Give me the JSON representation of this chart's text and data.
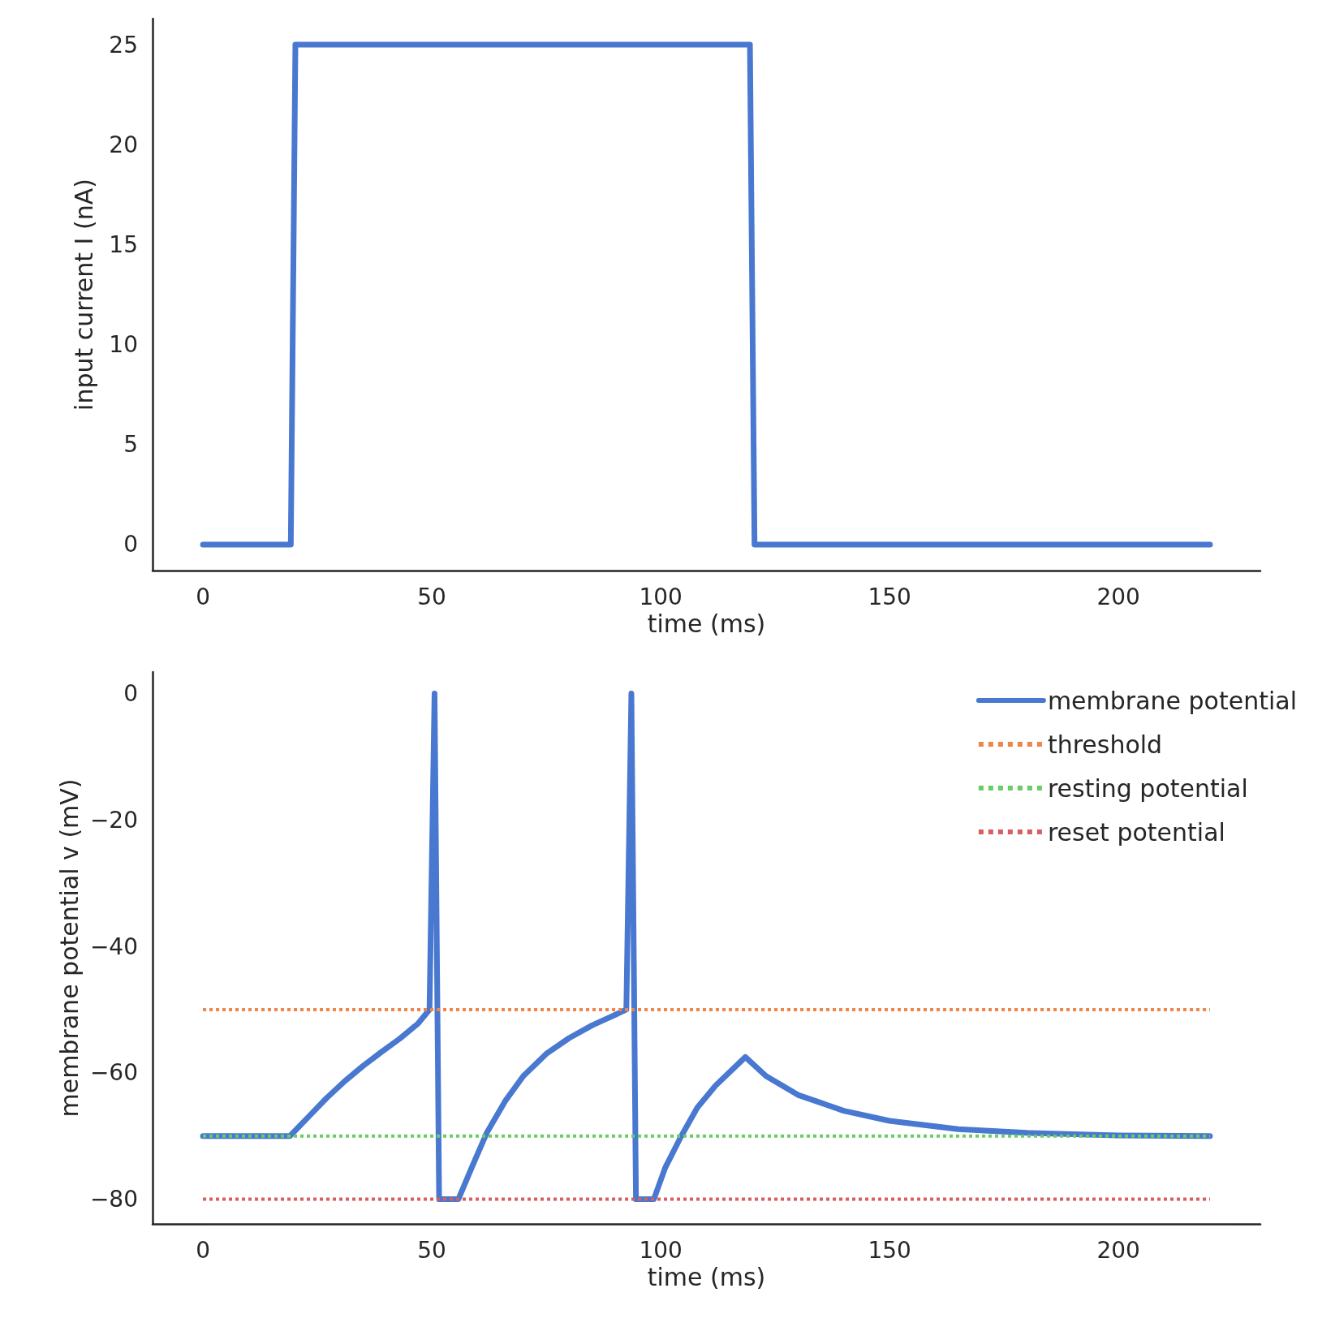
{
  "chart_data": [
    {
      "type": "line",
      "xlabel": "time (ms)",
      "ylabel": "input current I (nA)",
      "xlim": [
        -11,
        231
      ],
      "ylim": [
        -1.3,
        26.3
      ],
      "xticks": [
        0,
        50,
        100,
        150,
        200
      ],
      "yticks": [
        0,
        5,
        10,
        15,
        20,
        25
      ],
      "grid": false,
      "legend": false,
      "marker": "none",
      "series": [
        {
          "color": "#4878d0",
          "x": [
            0,
            19.2,
            20.2,
            119.5,
            120.5,
            220
          ],
          "values": [
            0,
            0,
            25,
            25,
            0,
            0
          ]
        }
      ]
    },
    {
      "type": "line",
      "xlabel": "time (ms)",
      "ylabel": "membrane potential v (mV)",
      "xlim": [
        -11,
        231
      ],
      "ylim": [
        -83.9,
        3.4
      ],
      "xticks": [
        0,
        50,
        100,
        150,
        200
      ],
      "yticks": [
        {
          "value": -80,
          "label": "−80"
        },
        {
          "value": -60,
          "label": "−60"
        },
        {
          "value": -40,
          "label": "−40"
        },
        {
          "value": -20,
          "label": "−20"
        },
        0
      ],
      "grid": false,
      "legend": "top right",
      "marker": "none",
      "series": [
        {
          "name": "membrane potential",
          "color": "#4878d0",
          "line_style": "solid",
          "x": [
            0,
            19,
            23,
            27,
            31,
            35,
            39,
            43,
            47,
            49.5,
            50.6,
            51.6,
            55.8,
            59,
            62,
            66,
            70,
            75,
            80,
            85,
            92.5,
            93.6,
            94.6,
            98.5,
            101,
            104.5,
            108,
            112,
            118.5,
            123,
            130,
            140,
            150,
            165,
            180,
            200,
            220
          ],
          "values": [
            -70,
            -70,
            -67,
            -64,
            -61.3,
            -58.9,
            -56.7,
            -54.6,
            -52.2,
            -50,
            0,
            -80,
            -80,
            -74.5,
            -69.5,
            -64.5,
            -60.5,
            -57,
            -54.5,
            -52.5,
            -50,
            0,
            -80,
            -80,
            -75,
            -70,
            -65.5,
            -62,
            -57.5,
            -60.5,
            -63.5,
            -66,
            -67.6,
            -68.9,
            -69.5,
            -69.9,
            -70
          ]
        },
        {
          "name": "threshold",
          "color": "#ee854a",
          "line_style": "dotted",
          "x": [
            0,
            220
          ],
          "values": [
            -50,
            -50
          ]
        },
        {
          "name": "resting potential",
          "color": "#6acc64",
          "line_style": "dotted",
          "x": [
            0,
            220
          ],
          "values": [
            -70,
            -70
          ]
        },
        {
          "name": "reset potential",
          "color": "#d65f5f",
          "line_style": "dotted",
          "x": [
            0,
            220
          ],
          "values": [
            -80,
            -80
          ]
        }
      ]
    }
  ]
}
